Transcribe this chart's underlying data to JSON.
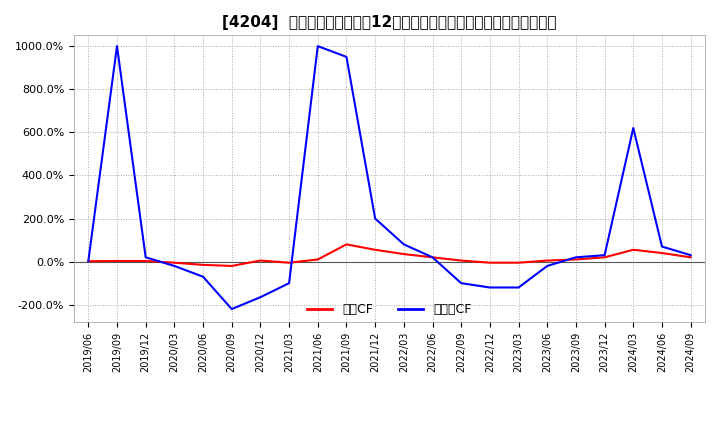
{
  "title": "[4204]  キャッシュフローの12か月移動合計の対前年同期増減率の推移",
  "legend_labels": [
    "営業CF",
    "フリーCF"
  ],
  "legend_colors": [
    "#ff0000",
    "#0000ff"
  ],
  "ylim": [
    -280,
    1050
  ],
  "yticks": [
    -200,
    0,
    200,
    400,
    600,
    800,
    1000
  ],
  "ytick_labels": [
    "-200.0%",
    "0.0%",
    "200.0%",
    "400.0%",
    "600.0%",
    "800.0%",
    "1000.0%"
  ],
  "background_color": "#ffffff",
  "grid_color": "#aaaaaa",
  "x_dates": [
    "2019/06",
    "2019/09",
    "2019/12",
    "2020/03",
    "2020/06",
    "2020/09",
    "2020/12",
    "2021/03",
    "2021/06",
    "2021/09",
    "2021/12",
    "2022/03",
    "2022/06",
    "2022/09",
    "2022/12",
    "2023/03",
    "2023/06",
    "2023/09",
    "2023/12",
    "2024/03",
    "2024/06",
    "2024/09"
  ],
  "eigyo_cf": [
    2,
    3,
    3,
    -5,
    -15,
    -20,
    5,
    -5,
    10,
    80,
    55,
    35,
    20,
    5,
    -5,
    -5,
    5,
    10,
    20,
    55,
    40,
    20
  ],
  "free_cf": [
    2,
    1000,
    20,
    -20,
    -70,
    -220,
    -165,
    -100,
    1000,
    950,
    200,
    80,
    20,
    -100,
    -120,
    -120,
    -20,
    20,
    30,
    620,
    70,
    30
  ]
}
